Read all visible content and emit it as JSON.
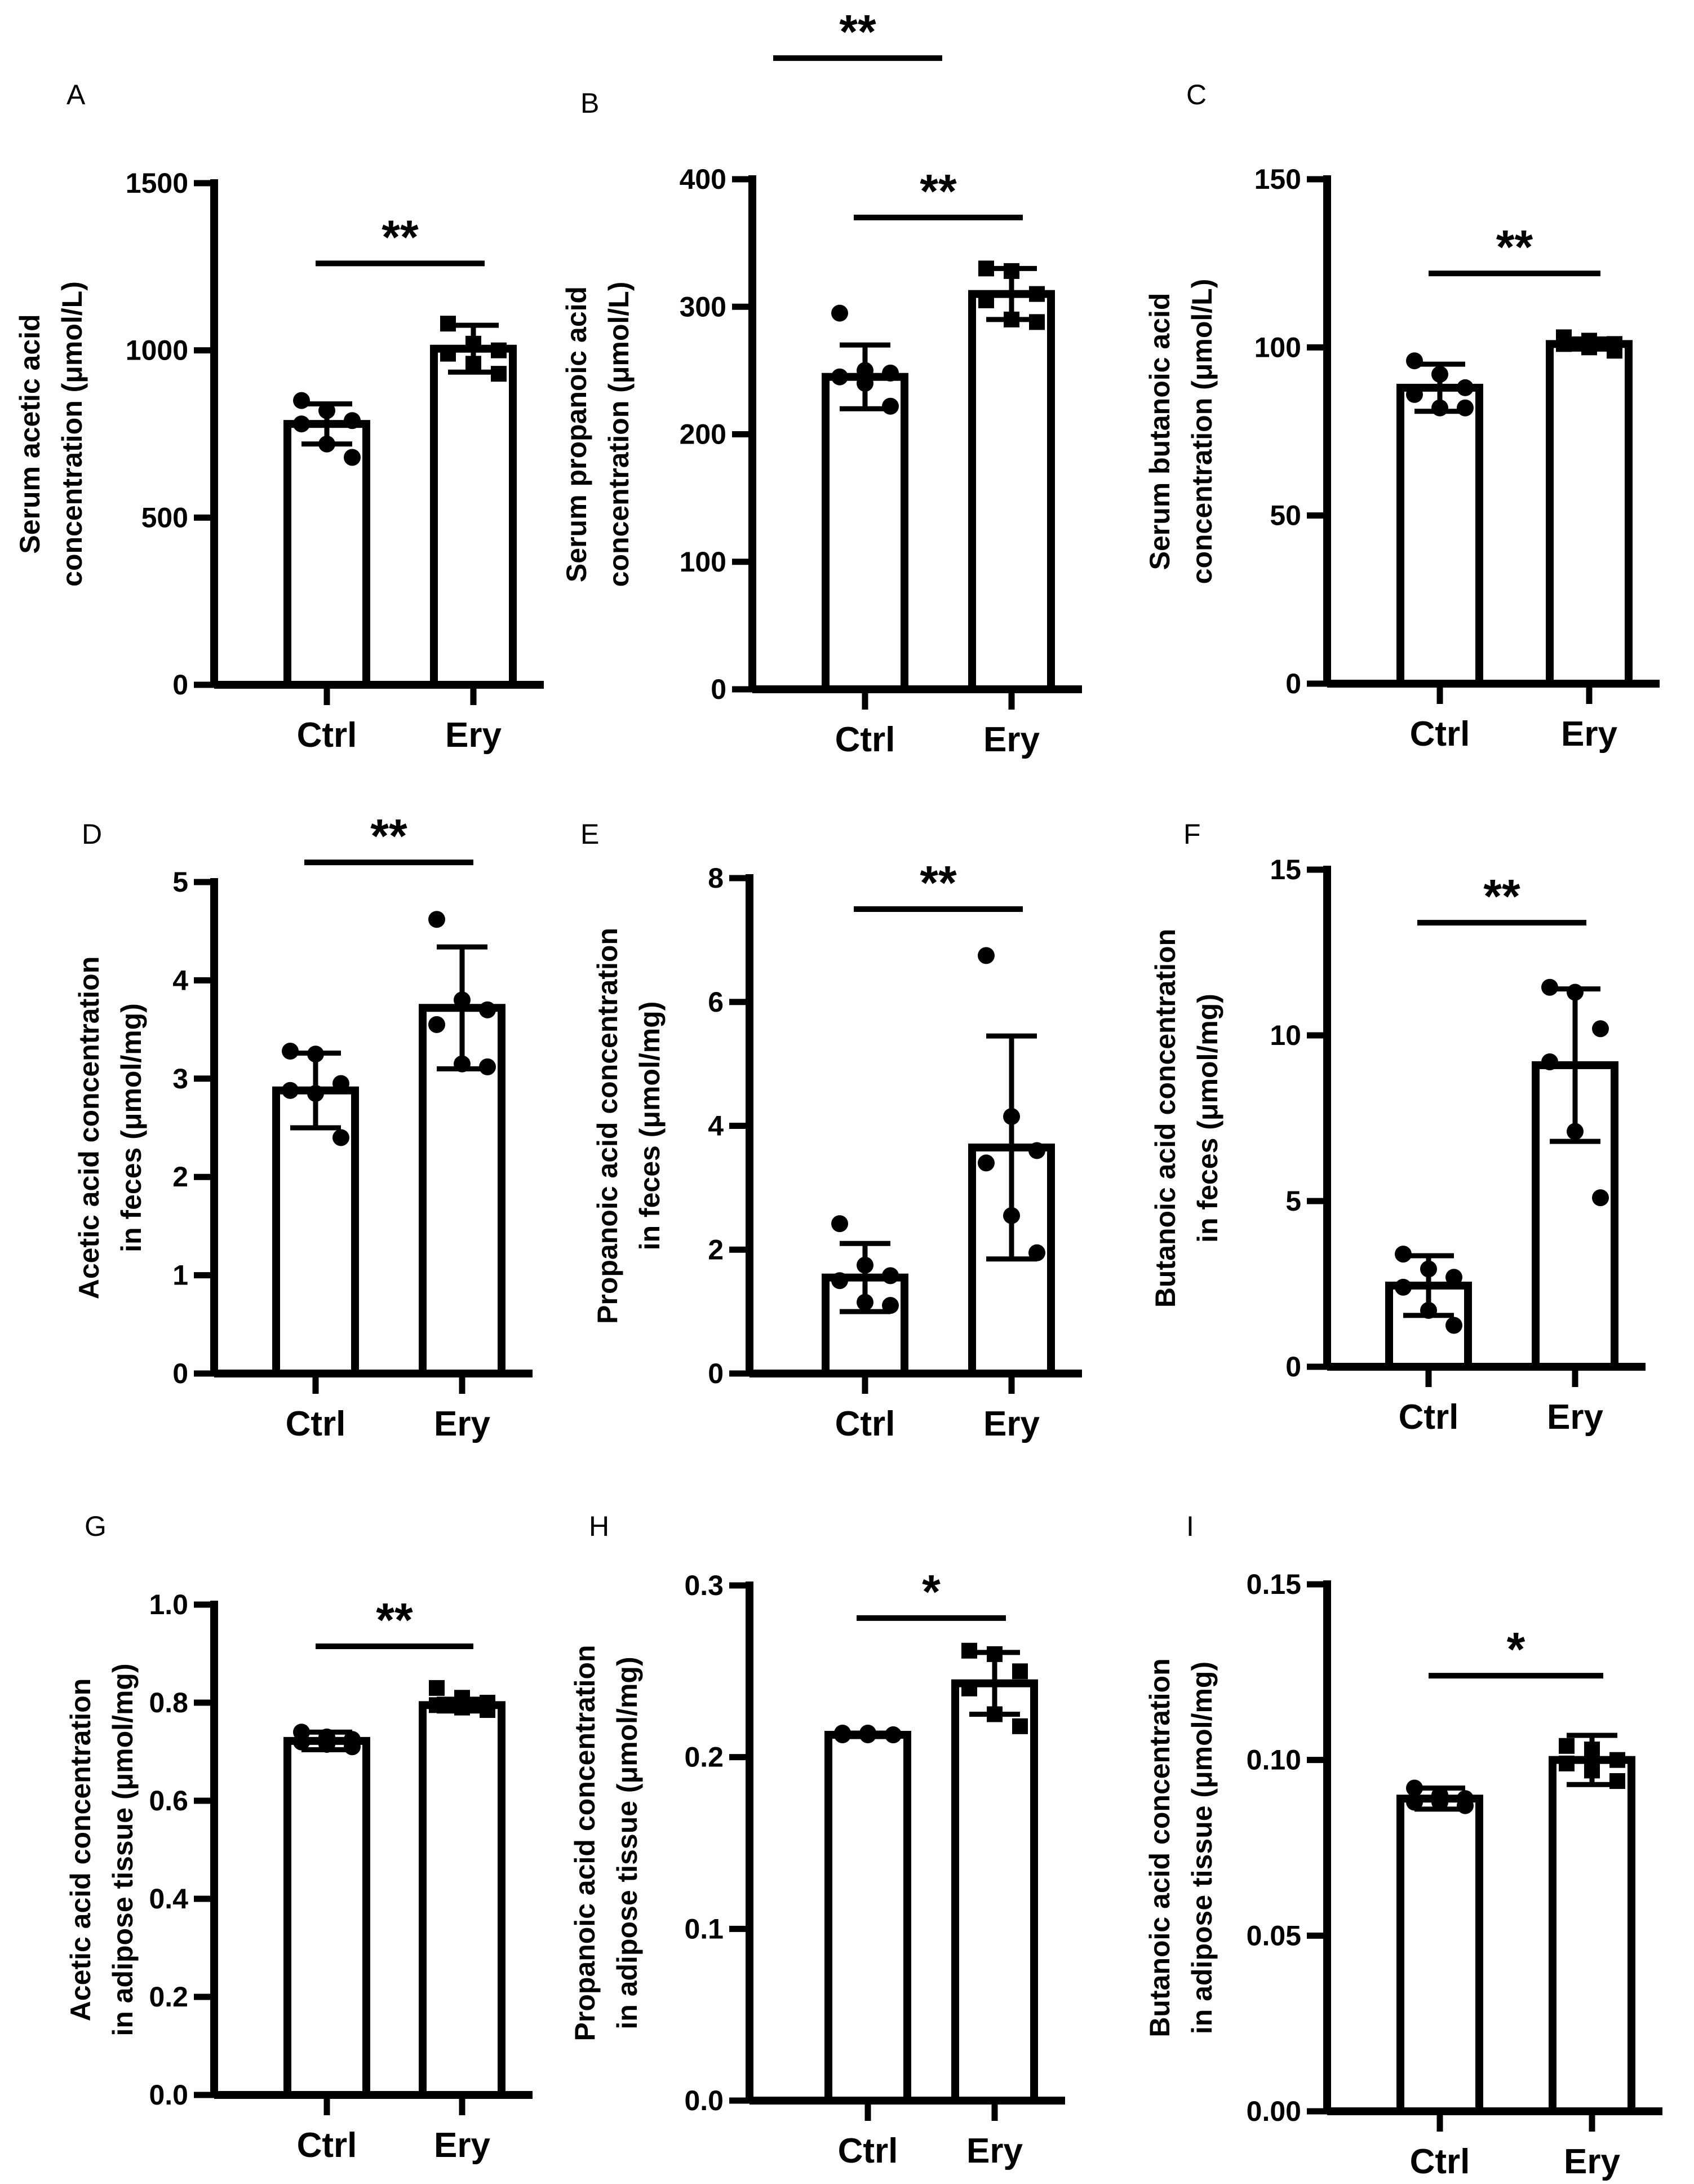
{
  "figure": {
    "categories": [
      "Ctrl",
      "Ery"
    ],
    "colors": {
      "ink": "#000000",
      "bar_fill": "#ffffff"
    }
  },
  "chart_data": [
    {
      "panel": "A",
      "type": "bar",
      "ylabel": [
        "Serum acetic acid",
        "concentration (μmol/L)"
      ],
      "ylim": [
        0,
        1500
      ],
      "yticks": [
        0,
        500,
        1000,
        1500
      ],
      "tick_labels": [
        "0",
        "500",
        "1000",
        "1500"
      ],
      "categories": [
        "Ctrl",
        "Ery"
      ],
      "values": [
        780,
        1005
      ],
      "sd": [
        60,
        70
      ],
      "points": [
        [
          850,
          820,
          790,
          780,
          720,
          680
        ],
        [
          1080,
          1020,
          1000,
          990,
          960,
          930
        ]
      ],
      "markers": [
        "circle",
        "square"
      ],
      "significance": [
        {
          "label": "**",
          "y": 1260
        }
      ]
    },
    {
      "panel": "B",
      "type": "bar",
      "ylabel": [
        "Serum propanoic acid",
        "concentration (μmol/L)"
      ],
      "ylim": [
        0,
        400
      ],
      "yticks": [
        0,
        100,
        200,
        300,
        400
      ],
      "tick_labels": [
        "0",
        "100",
        "200",
        "300",
        "400"
      ],
      "categories": [
        "Ctrl",
        "Ery"
      ],
      "values": [
        245,
        310
      ],
      "sd": [
        25,
        20
      ],
      "points": [
        [
          295,
          250,
          248,
          245,
          240,
          222
        ],
        [
          330,
          328,
          310,
          305,
          290,
          288
        ]
      ],
      "markers": [
        "circle",
        "square"
      ],
      "significance": [
        {
          "label": "**",
          "y": 370
        },
        {
          "label": "**",
          "y": 495,
          "xspan": [
            -0.55,
            0.45
          ]
        }
      ]
    },
    {
      "panel": "C",
      "type": "bar",
      "ylabel": [
        "Serum butanoic acid",
        "concentration (μmol/L)"
      ],
      "ylim": [
        0,
        150
      ],
      "yticks": [
        0,
        50,
        100,
        150
      ],
      "tick_labels": [
        "0",
        "50",
        "100",
        "150"
      ],
      "categories": [
        "Ctrl",
        "Ery"
      ],
      "values": [
        88,
        101
      ],
      "sd": [
        7,
        1.5
      ],
      "points": [
        [
          96,
          92,
          88,
          86,
          82,
          82
        ],
        [
          103,
          102,
          101,
          101,
          100,
          99
        ]
      ],
      "markers": [
        "circle",
        "square"
      ],
      "significance": [
        {
          "label": "**",
          "y": 122
        }
      ]
    },
    {
      "panel": "D",
      "type": "bar",
      "ylabel": [
        "Acetic acid concentration",
        "in feces (μmol/mg)"
      ],
      "ylim": [
        0,
        5
      ],
      "yticks": [
        0,
        1,
        2,
        3,
        4,
        5
      ],
      "tick_labels": [
        "0",
        "1",
        "2",
        "3",
        "4",
        "5"
      ],
      "categories": [
        "Ctrl",
        "Ery"
      ],
      "values": [
        2.88,
        3.72
      ],
      "sd": [
        0.38,
        0.62
      ],
      "points": [
        [
          3.28,
          3.25,
          2.95,
          2.88,
          2.85,
          2.4
        ],
        [
          4.62,
          3.8,
          3.7,
          3.55,
          3.15,
          3.12
        ]
      ],
      "markers": [
        "circle",
        "circle"
      ],
      "significance": [
        {
          "label": "**",
          "y": 5.2
        }
      ]
    },
    {
      "panel": "E",
      "type": "bar",
      "ylabel": [
        "Propanoic acid concentration",
        "in feces (μmol/mg)"
      ],
      "ylim": [
        0,
        8
      ],
      "yticks": [
        0,
        2,
        4,
        6,
        8
      ],
      "tick_labels": [
        "0",
        "2",
        "4",
        "6",
        "8"
      ],
      "categories": [
        "Ctrl",
        "Ery"
      ],
      "values": [
        1.55,
        3.65
      ],
      "sd": [
        0.55,
        1.8
      ],
      "points": [
        [
          2.42,
          1.75,
          1.58,
          1.5,
          1.15,
          1.1
        ],
        [
          6.75,
          4.15,
          3.6,
          3.4,
          2.55,
          1.95
        ]
      ],
      "markers": [
        "circle",
        "circle"
      ],
      "significance": [
        {
          "label": "**",
          "y": 7.5
        }
      ]
    },
    {
      "panel": "F",
      "type": "bar",
      "ylabel": [
        "Butanoic acid concentration",
        "in feces (μmol/mg)"
      ],
      "ylim": [
        0,
        15
      ],
      "yticks": [
        0,
        5,
        10,
        15
      ],
      "tick_labels": [
        "0",
        "5",
        "10",
        "15"
      ],
      "categories": [
        "Ctrl",
        "Ery"
      ],
      "values": [
        2.45,
        9.1
      ],
      "sd": [
        0.9,
        2.3
      ],
      "points": [
        [
          3.4,
          2.95,
          2.7,
          2.4,
          1.7,
          1.25
        ],
        [
          11.45,
          11.3,
          10.2,
          9.2,
          7.1,
          5.1
        ]
      ],
      "markers": [
        "circle",
        "circle"
      ],
      "significance": [
        {
          "label": "**",
          "y": 13.4
        }
      ]
    },
    {
      "panel": "G",
      "type": "bar",
      "ylabel": [
        "Acetic acid concentration",
        "in adipose tissue (μmol/mg)"
      ],
      "ylim": [
        0,
        1.0
      ],
      "yticks": [
        0,
        0.2,
        0.4,
        0.6,
        0.8,
        1.0
      ],
      "tick_labels": [
        "0.0",
        "0.2",
        "0.4",
        "0.6",
        "0.8",
        "1.0"
      ],
      "categories": [
        "Ctrl",
        "Ery"
      ],
      "values": [
        0.722,
        0.795
      ],
      "sd": [
        0.018,
        0.012
      ],
      "points": [
        [
          0.74,
          0.73,
          0.725,
          0.72,
          0.715,
          0.71
        ],
        [
          0.83,
          0.81,
          0.8,
          0.795,
          0.79,
          0.785
        ]
      ],
      "markers": [
        "circle",
        "square"
      ],
      "significance": [
        {
          "label": "**",
          "y": 0.915
        }
      ]
    },
    {
      "panel": "H",
      "type": "bar",
      "ylabel": [
        "Propanoic acid concentration",
        "in adipose tissue (μmol/mg)"
      ],
      "ylim": [
        0,
        0.3
      ],
      "yticks": [
        0,
        0.1,
        0.2,
        0.3
      ],
      "tick_labels": [
        "0.0",
        "0.1",
        "0.2",
        "0.3"
      ],
      "categories": [
        "Ctrl",
        "Ery"
      ],
      "values": [
        0.213,
        0.243
      ],
      "sd": [
        0.001,
        0.018
      ],
      "points": [
        [
          0.214,
          0.214,
          0.213,
          0.213,
          0.213,
          0.213
        ],
        [
          0.262,
          0.26,
          0.25,
          0.24,
          0.225,
          0.218
        ]
      ],
      "markers": [
        "circle",
        "square"
      ],
      "significance": [
        {
          "label": "*",
          "y": 0.281
        }
      ]
    },
    {
      "panel": "I",
      "type": "bar",
      "ylabel": [
        "Butanoic acid concentration",
        "in adipose tissue (μmol/mg)"
      ],
      "ylim": [
        0,
        0.15
      ],
      "yticks": [
        0,
        0.05,
        0.1,
        0.15
      ],
      "tick_labels": [
        "0.00",
        "0.05",
        "0.10",
        "0.15"
      ],
      "categories": [
        "Ctrl",
        "Ery"
      ],
      "values": [
        0.089,
        0.1
      ],
      "sd": [
        0.003,
        0.007
      ],
      "points": [
        [
          0.092,
          0.09,
          0.089,
          0.088,
          0.088,
          0.087
        ],
        [
          0.104,
          0.103,
          0.1,
          0.099,
          0.097,
          0.094
        ]
      ],
      "markers": [
        "circle",
        "square"
      ],
      "significance": [
        {
          "label": "*",
          "y": 0.124
        }
      ]
    }
  ]
}
